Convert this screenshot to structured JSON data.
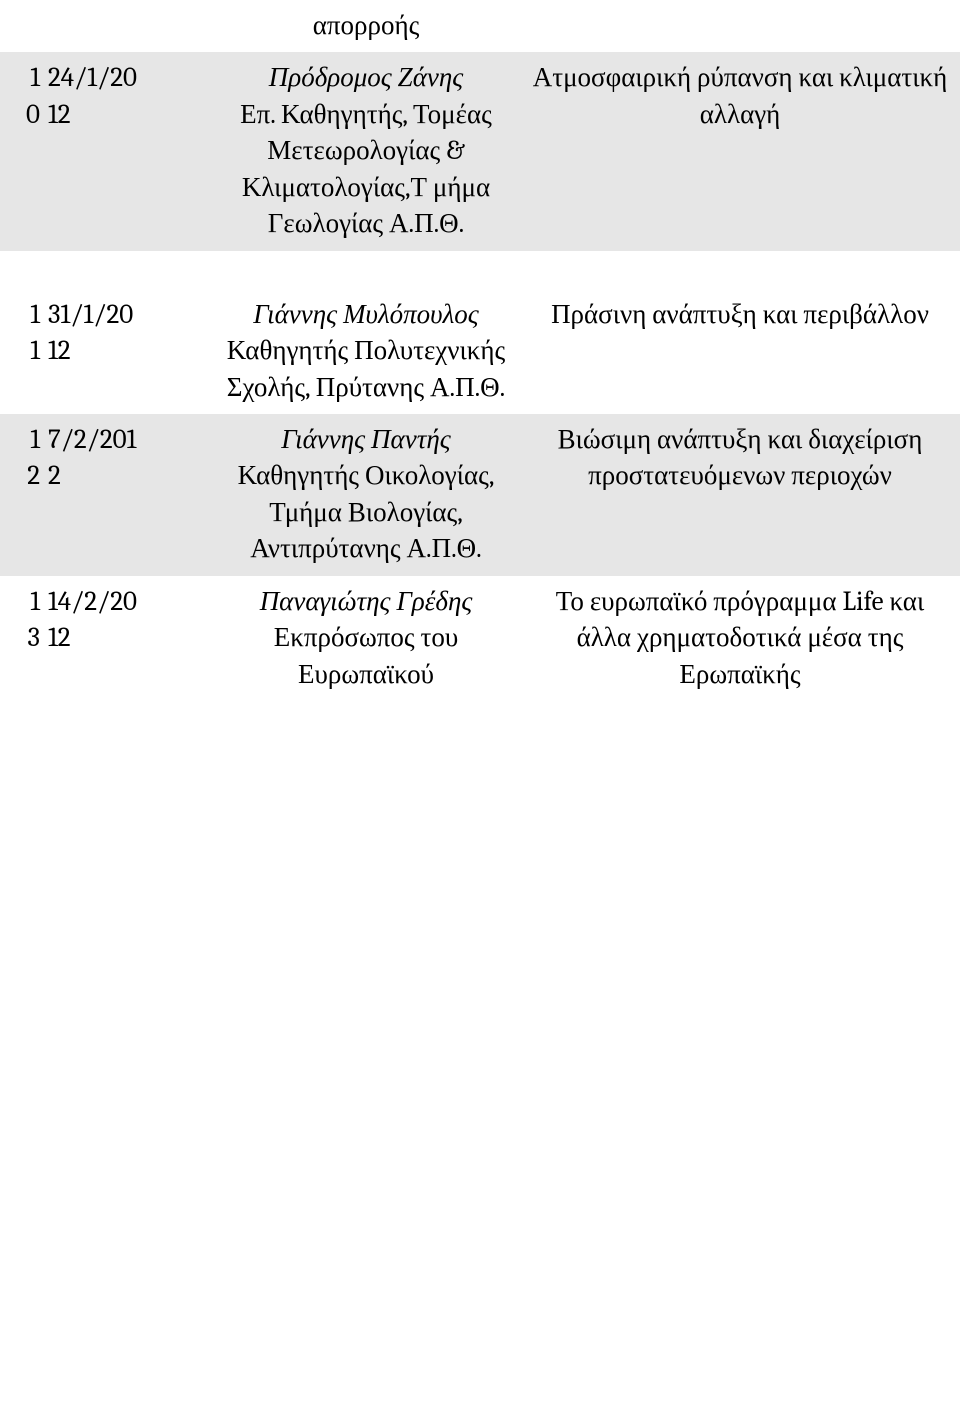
{
  "header_fragment": "απορροής",
  "rows": [
    {
      "idx_a": "1",
      "idx_b": "0",
      "date_a": "24/1/20",
      "date_b": "12",
      "speaker_italic": "Πρόδρομος Ζάνης",
      "speaker_plain": "Επ. Καθηγητής, Τομέας Μετεωρολογίας & Κλιματολογίας,Τ μήμα Γεωλογίας Α.Π.Θ.",
      "topic": "Ατμοσφαιρική ρύπανση και κλιματική αλλαγή",
      "shaded": true
    },
    {
      "idx_a": "1",
      "idx_b": "1",
      "date_a": "31/1/20",
      "date_b": "12",
      "speaker_italic": "Γιάννης Μυλόπουλος",
      "speaker_plain": "Καθηγητής Πολυτεχνικής Σχολής, Πρύτανης Α.Π.Θ.",
      "topic": "Πράσινη ανάπτυξη και περιβάλλον",
      "shaded": false
    },
    {
      "idx_a": "1",
      "idx_b": "2",
      "date_a": "7/2/201",
      "date_b": "2",
      "speaker_italic": "Γιάννης Παντής",
      "speaker_plain": "Καθηγητής Οικολογίας, Τμήμα Βιολογίας, Αντιπρύτανης Α.Π.Θ.",
      "topic": "Βιώσιμη ανάπτυξη και διαχείριση προστατευόμενων περιοχών",
      "shaded": true
    },
    {
      "idx_a": "1",
      "idx_b": "3",
      "date_a": "14/2/20",
      "date_b": "12",
      "speaker_italic": "Παναγιώτης Γρέδης",
      "speaker_plain": "Εκπρόσωπος του Ευρωπαϊκού",
      "topic": "Το ευρωπαϊκό πρόγραμμα Life και άλλα χρηματοδοτικά μέσα της Ερωπαϊκής",
      "shaded": false
    }
  ]
}
